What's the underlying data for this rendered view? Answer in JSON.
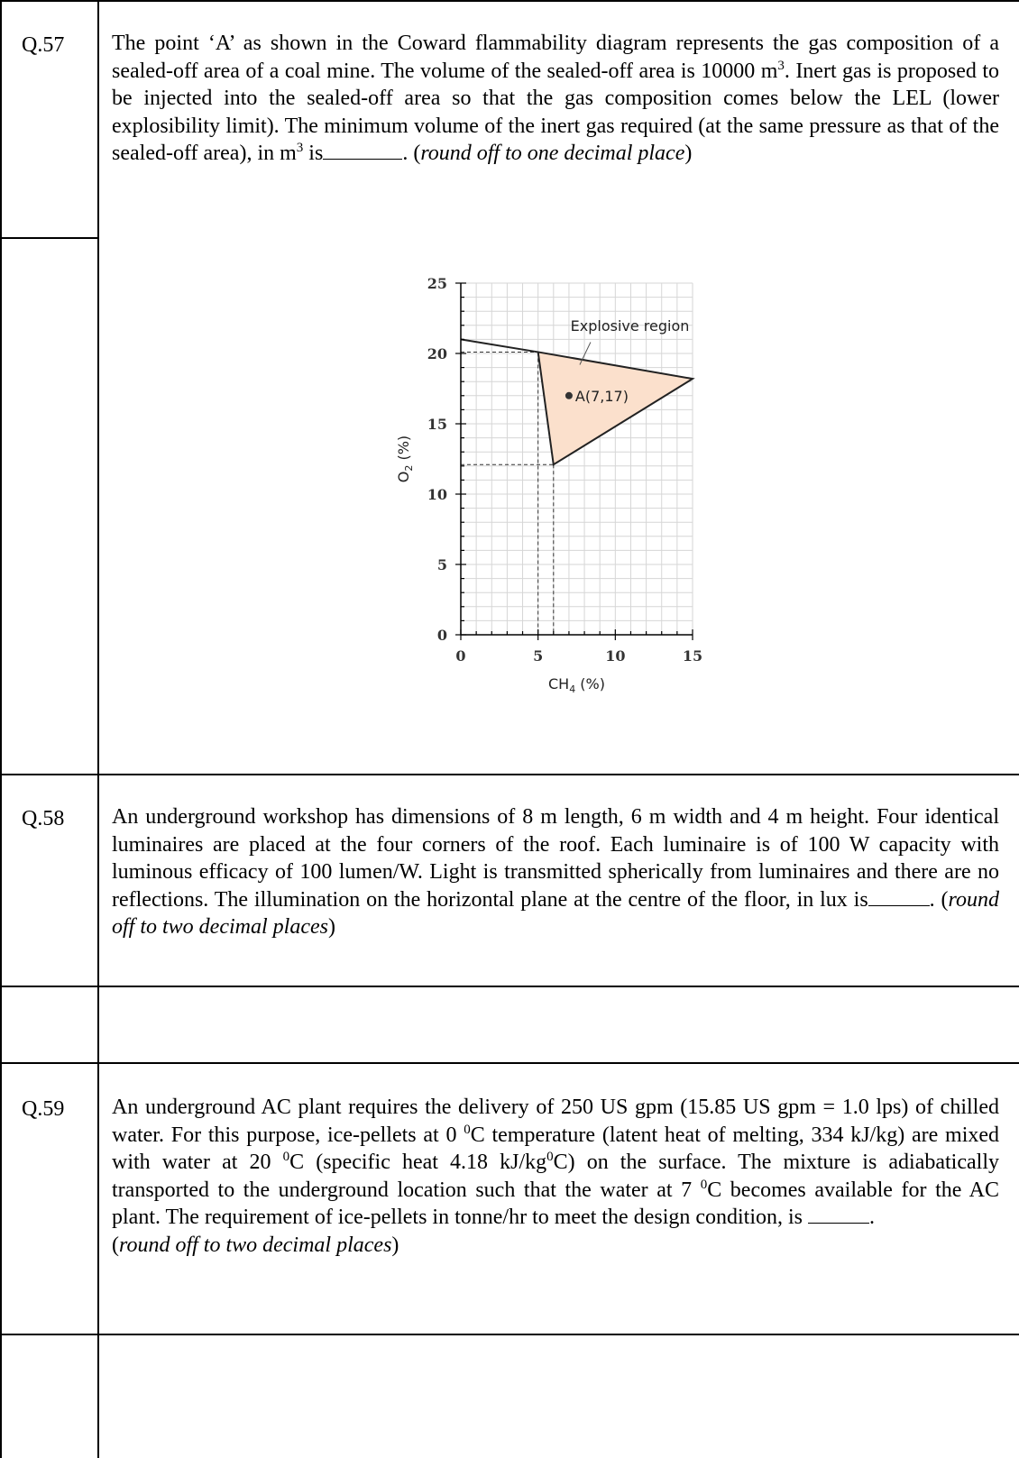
{
  "questions": [
    {
      "number": "Q.57",
      "text_parts": [
        "The point ‘A’ as shown in the Coward flammability diagram represents the gas composition of a sealed-off area of a coal mine. The volume of the sealed-off area is 10000 m",
        "3",
        ". Inert gas is proposed to be injected into the sealed-off area so that the gas composition comes below the LEL (lower explosibility limit). The minimum volume of the inert gas required (at the same pressure as that of the sealed-off area), in m",
        "3",
        " is",
        ". (",
        "round off to one decimal place",
        ")"
      ]
    },
    {
      "number": "Q.58",
      "text_parts": [
        "An underground workshop has dimensions of 8 m length, 6 m width and 4 m height. Four identical luminaires are placed at the four corners of the roof. Each luminaire is of 100 W capacity with luminous efficacy of 100 lumen/W. Light is transmitted spherically from luminaires and there are no reflections. The illumination on the horizontal plane at the centre of the floor, in lux is",
        ". (",
        "round off to two decimal places",
        ")"
      ]
    },
    {
      "number": "Q.59",
      "text_parts": [
        "An underground AC plant requires the delivery of 250 US gpm (15.85 US gpm = 1.0 lps) of chilled water.  For this purpose, ice-pellets at 0 ",
        "0",
        "C temperature (latent heat of melting, 334 kJ/kg) are mixed with water at 20 ",
        "0",
        "C (specific heat 4.18 kJ/kg",
        "0",
        "C) on the surface. The mixture is adiabatically transported to the underground location such that the water at 7 ",
        "0",
        "C becomes available for the AC plant. The requirement of ice-pellets in tonne/hr to meet the design condition, is ",
        ".",
        "(",
        "round off to two decimal places",
        ")"
      ]
    }
  ],
  "chart_data": {
    "type": "line",
    "xlabel": "CH",
    "xlabel_sub": "4",
    "xlabel_unit": " (%)",
    "ylabel": "O",
    "ylabel_sub": "2",
    "ylabel_unit": " (%)",
    "xlim": [
      0,
      15
    ],
    "ylim": [
      0,
      25
    ],
    "x_ticks": [
      "0",
      "5",
      "10",
      "15"
    ],
    "y_ticks": [
      "0",
      "5",
      "10",
      "15",
      "20",
      "25"
    ],
    "grid": true,
    "region_label": "Explosive region",
    "region_fill": "#fbe0cc",
    "explosive_region": [
      [
        5,
        20.1
      ],
      [
        15,
        18.2
      ],
      [
        6,
        12.1
      ]
    ],
    "boundary_line": [
      [
        0,
        21
      ],
      [
        5,
        20.1
      ],
      [
        15,
        18.2
      ]
    ],
    "guide_lines": [
      [
        [
          0,
          20.1
        ],
        [
          5,
          20.1
        ]
      ],
      [
        [
          0,
          12.1
        ],
        [
          6,
          12.1
        ]
      ],
      [
        [
          5,
          20.1
        ],
        [
          5,
          0
        ]
      ],
      [
        [
          6,
          12.1
        ],
        [
          6,
          0
        ]
      ]
    ],
    "point": {
      "label": "A(7,17)",
      "x": 7,
      "y": 17
    }
  }
}
